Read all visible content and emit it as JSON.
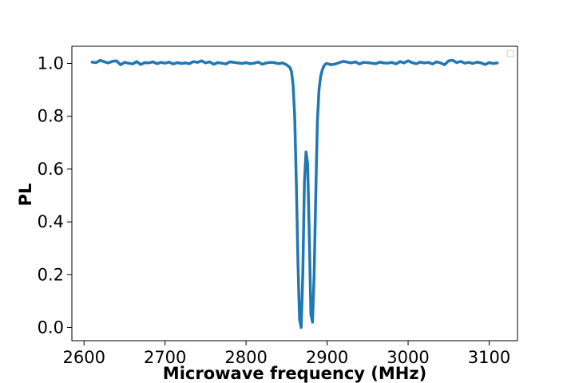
{
  "chart_data": {
    "type": "line",
    "title": "",
    "xlabel": "Microwave frequency (MHz)",
    "ylabel": "PL",
    "xlim": [
      2585,
      3135
    ],
    "ylim": [
      -0.05,
      1.065
    ],
    "xticks": [
      2600,
      2700,
      2800,
      2900,
      3000,
      3100
    ],
    "yticks": [
      0.0,
      0.2,
      0.4,
      0.6,
      0.8,
      1.0
    ],
    "xtick_labels": [
      "2600",
      "2700",
      "2800",
      "2900",
      "3000",
      "3100"
    ],
    "ytick_labels": [
      "0.0",
      "0.2",
      "0.4",
      "0.6",
      "0.8",
      "1.0"
    ],
    "grid": false,
    "legend": {
      "placement": "top-right",
      "entries": []
    },
    "series": [
      {
        "color": "#1f77b4",
        "x": [
          2610,
          2615,
          2620,
          2625,
          2630,
          2635,
          2640,
          2645,
          2650,
          2655,
          2660,
          2665,
          2670,
          2675,
          2680,
          2685,
          2690,
          2695,
          2700,
          2705,
          2710,
          2715,
          2720,
          2725,
          2730,
          2735,
          2740,
          2745,
          2750,
          2755,
          2760,
          2765,
          2770,
          2775,
          2780,
          2785,
          2790,
          2795,
          2800,
          2805,
          2810,
          2815,
          2820,
          2825,
          2830,
          2835,
          2840,
          2845,
          2850,
          2852,
          2854,
          2856,
          2858,
          2860,
          2862,
          2864,
          2866,
          2868,
          2870,
          2872,
          2874,
          2876,
          2878,
          2880,
          2882,
          2884,
          2886,
          2888,
          2890,
          2892,
          2894,
          2896,
          2898,
          2900,
          2905,
          2910,
          2915,
          2920,
          2925,
          2930,
          2935,
          2940,
          2945,
          2950,
          2955,
          2960,
          2965,
          2970,
          2975,
          2980,
          2985,
          2990,
          2995,
          3000,
          3005,
          3010,
          3015,
          3020,
          3025,
          3030,
          3035,
          3040,
          3045,
          3050,
          3055,
          3060,
          3065,
          3070,
          3075,
          3080,
          3085,
          3090,
          3095,
          3100,
          3105,
          3110
        ],
        "y": [
          1.005,
          1.003,
          1.012,
          1.006,
          1.002,
          1.008,
          1.01,
          0.995,
          1.004,
          1.001,
          0.998,
          1.007,
          0.996,
          1.003,
          1.002,
          1.006,
          0.999,
          1.004,
          1.001,
          1.005,
          0.998,
          1.003,
          1.0,
          1.002,
          0.999,
          1.007,
          1.004,
          1.01,
          1.002,
          1.006,
          0.997,
          1.003,
          1.001,
          0.998,
          1.006,
          1.004,
          1.002,
          1.0,
          1.003,
          0.999,
          1.001,
          1.005,
          0.997,
          1.002,
          1.004,
          1.003,
          0.999,
          1.002,
          0.995,
          0.99,
          0.985,
          0.97,
          0.92,
          0.8,
          0.55,
          0.25,
          0.03,
          0.0,
          0.2,
          0.55,
          0.665,
          0.62,
          0.35,
          0.05,
          0.02,
          0.2,
          0.5,
          0.78,
          0.9,
          0.95,
          0.975,
          0.99,
          0.998,
          1.0,
          0.995,
          0.998,
          1.003,
          1.008,
          1.005,
          1.002,
          1.006,
          0.998,
          1.004,
          1.003,
          1.001,
          0.999,
          1.005,
          1.002,
          1.001,
          1.004,
          0.998,
          1.007,
          1.002,
          1.01,
          1.003,
          0.999,
          1.005,
          1.002,
          1.004,
          0.998,
          1.006,
          1.002,
          0.995,
          1.01,
          1.012,
          1.003,
          1.008,
          1.001,
          1.004,
          1.0,
          1.005,
          1.002,
          0.996,
          1.003,
          1.0,
          1.002
        ]
      }
    ]
  }
}
